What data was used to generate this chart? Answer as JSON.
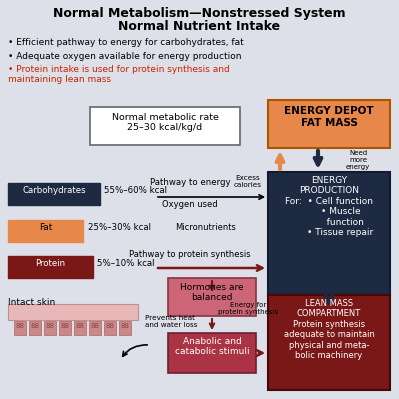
{
  "title_line1": "Normal Metabolism—Nonstressed System",
  "title_line2": "Normal Nutrient Intake",
  "bg_color": "#dde0e8",
  "bullet1": "Efficient pathway to energy for carbohydrates, fat",
  "bullet2": "Adequate oxygen available for energy production",
  "bullet3_red": "Protein intake is used for protein synthesis and\nmaintaining lean mass",
  "normal_rate_box": "Normal metabolic rate\n25–30 kcal/kg/d",
  "energy_depot_box": "ENERGY DEPOT\nFAT MASS",
  "energy_prod_box": "ENERGY\nPRODUCTION\nFor:  • Cell function\n        • Muscle\n           function\n        • Tissue repair",
  "lean_mass_box": "LEAN MASS\nCOMPARTMENT\nProtein synthesis\nadequate to maintain\nphysical and meta-\nbolic machinery",
  "carb_label": "Carbohydrates",
  "carb_pct": "55%–60% kcal",
  "fat_label": "Fat",
  "fat_pct": "25%–30% kcal",
  "protein_label": "Protein",
  "protein_pct": "5%–10% kcal",
  "pathway_energy": "Pathway to energy",
  "oxygen_used": "Oxygen used",
  "micronutrients": "Micronutrients",
  "pathway_protein": "Pathway to protein synthesis",
  "hormones": "Hormones are\nbalanced",
  "anabolic": "Anabolic and\ncatabolic stimuli",
  "intact_skin": "Intact skin",
  "prevents": "Prevents heat\nand water loss",
  "excess_calories": "Excess\ncalories",
  "need_more": "Need\nmore\nenergy",
  "energy_protein": "Energy for\nprotein synthesis",
  "carb_color": "#1e2a42",
  "fat_color": "#e8874a",
  "protein_color": "#7a1818",
  "energy_depot_color": "#e8874a",
  "energy_prod_color": "#1e2a42",
  "lean_mass_color": "#7a1818",
  "hormones_color": "#cc6677",
  "anabolic_color": "#aa3344"
}
